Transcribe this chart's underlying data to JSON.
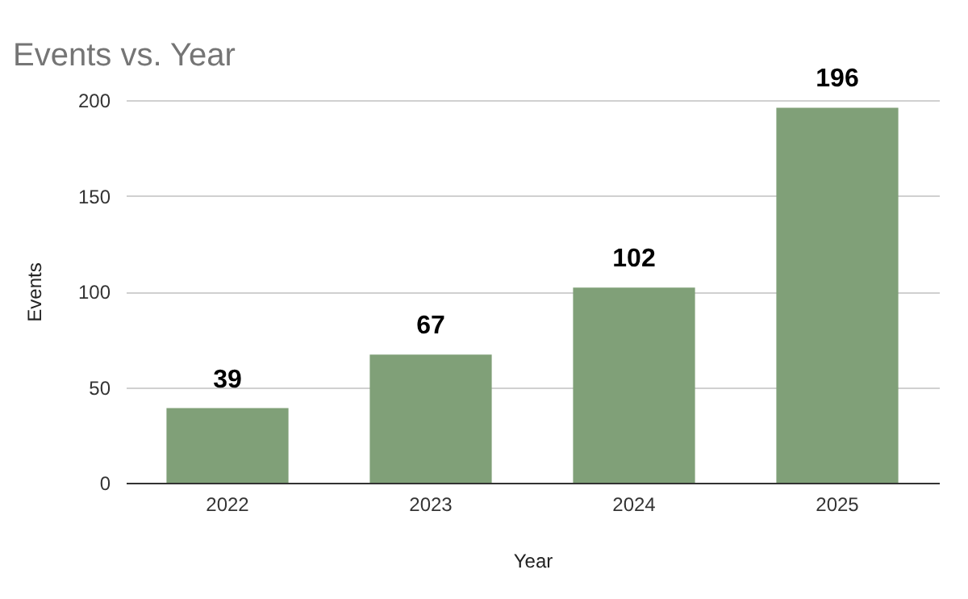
{
  "chart_data": {
    "type": "bar",
    "title": "Events vs. Year",
    "xlabel": "Year",
    "ylabel": "Events",
    "categories": [
      "2022",
      "2023",
      "2024",
      "2025"
    ],
    "values": [
      39,
      67,
      102,
      196
    ],
    "color": "#80a078",
    "ylim": [
      0,
      200
    ],
    "yticks": [
      0,
      50,
      100,
      150,
      200
    ],
    "grid": "y",
    "data_labels": true
  }
}
